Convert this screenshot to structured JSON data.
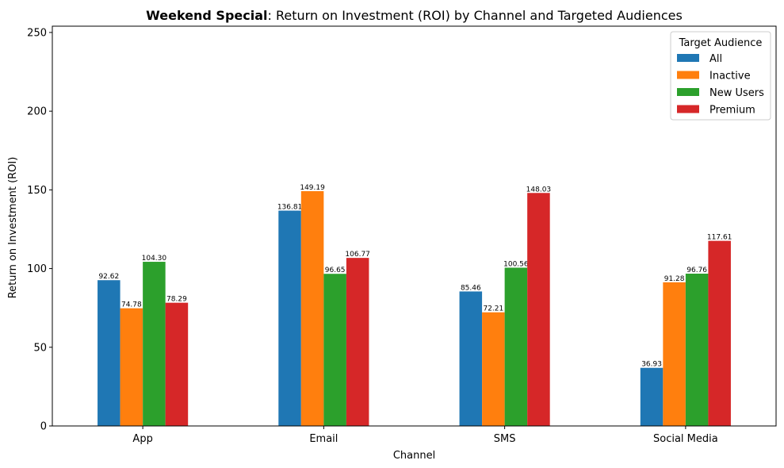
{
  "chart_data": {
    "type": "bar",
    "title_bold": "Weekend Special",
    "title_rest": ": Return on Investment (ROI) by Channel and Targeted Audiences",
    "xlabel": "Channel",
    "ylabel": "Return on Investment (ROI)",
    "categories": [
      "App",
      "Email",
      "SMS",
      "Social Media"
    ],
    "series": [
      {
        "name": "All",
        "color": "#1f77b4",
        "values": [
          92.62,
          136.81,
          85.46,
          36.93
        ]
      },
      {
        "name": "Inactive",
        "color": "#ff7f0e",
        "values": [
          74.78,
          149.19,
          72.21,
          91.28
        ]
      },
      {
        "name": "New Users",
        "color": "#2ca02c",
        "values": [
          104.3,
          96.65,
          100.56,
          96.76
        ]
      },
      {
        "name": "Premium",
        "color": "#d62728",
        "values": [
          78.29,
          106.77,
          148.03,
          117.61
        ]
      }
    ],
    "ylim": [
      0,
      254
    ],
    "yticks": [
      0,
      50,
      100,
      150,
      200,
      250
    ],
    "legend_title": "Target Audience",
    "legend_position": "top-right",
    "grid": false
  }
}
